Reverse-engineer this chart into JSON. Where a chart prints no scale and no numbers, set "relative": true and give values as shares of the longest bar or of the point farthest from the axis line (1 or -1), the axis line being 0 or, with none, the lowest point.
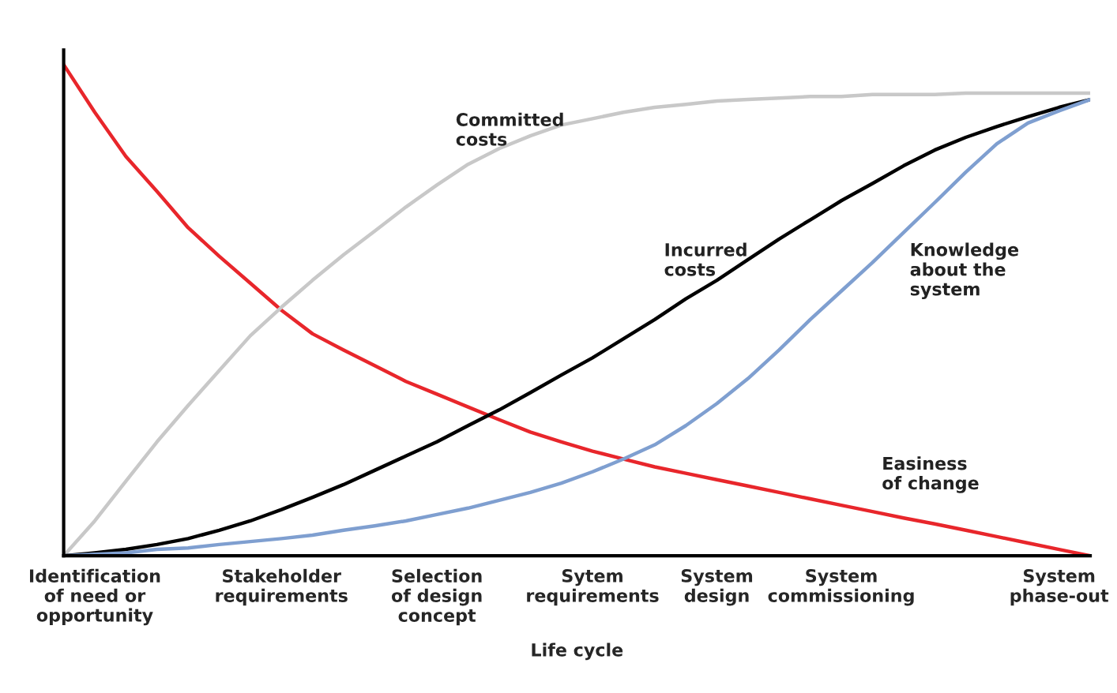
{
  "chart_data": {
    "type": "line",
    "relative": true,
    "xlabel": "Life cycle",
    "categories": [
      null,
      "Identification\nof need or\nopportunity",
      null,
      null,
      null,
      null,
      null,
      "Stakeholder\nrequirements",
      null,
      null,
      null,
      null,
      "Selection\nof design\nconcept",
      null,
      null,
      null,
      null,
      "Sytem\nrequirements",
      null,
      null,
      null,
      "System\ndesign",
      null,
      null,
      null,
      "System\ncommissioning",
      null,
      null,
      null,
      null,
      null,
      null,
      "System\nphase-out",
      null
    ],
    "series": [
      {
        "name": "Easiness\nof change",
        "color": "#e8262b",
        "values": [
          1.0,
          0.903,
          0.813,
          0.742,
          0.668,
          0.61,
          0.555,
          0.5,
          0.452,
          0.419,
          0.387,
          0.355,
          0.329,
          0.303,
          0.277,
          0.252,
          0.232,
          0.213,
          0.197,
          0.181,
          0.168,
          0.155,
          0.142,
          0.129,
          0.116,
          0.103,
          0.09,
          0.077,
          0.065,
          0.052,
          0.039,
          0.026,
          0.013,
          0
        ]
      },
      {
        "name": "Committed\ncosts",
        "color": "#c8c8c8",
        "values": [
          0,
          0.071,
          0.152,
          0.232,
          0.306,
          0.377,
          0.448,
          0.506,
          0.561,
          0.613,
          0.661,
          0.71,
          0.755,
          0.797,
          0.829,
          0.855,
          0.877,
          0.89,
          0.903,
          0.913,
          0.919,
          0.926,
          0.929,
          0.932,
          0.935,
          0.935,
          0.939,
          0.939,
          0.939,
          0.942,
          0.942,
          0.942,
          0.942,
          0.942
        ]
      },
      {
        "name": "Incurred\ncosts",
        "color": "#000000",
        "values": [
          0,
          0.006,
          0.013,
          0.023,
          0.035,
          0.052,
          0.071,
          0.094,
          0.119,
          0.145,
          0.174,
          0.203,
          0.232,
          0.265,
          0.297,
          0.332,
          0.368,
          0.403,
          0.442,
          0.481,
          0.523,
          0.561,
          0.603,
          0.645,
          0.684,
          0.723,
          0.758,
          0.794,
          0.826,
          0.852,
          0.874,
          0.894,
          0.913,
          0.929
        ]
      },
      {
        "name": "Knowledge\nabout the\nsystem",
        "color": "#7f9fd0",
        "values": [
          0,
          0.003,
          0.006,
          0.013,
          0.016,
          0.023,
          0.029,
          0.035,
          0.042,
          0.052,
          0.061,
          0.071,
          0.084,
          0.097,
          0.113,
          0.129,
          0.148,
          0.171,
          0.197,
          0.226,
          0.265,
          0.31,
          0.361,
          0.419,
          0.481,
          0.539,
          0.597,
          0.658,
          0.719,
          0.781,
          0.839,
          0.881,
          0.906,
          0.929
        ]
      }
    ],
    "grid": false,
    "marker": "none",
    "line_style": "solid"
  }
}
